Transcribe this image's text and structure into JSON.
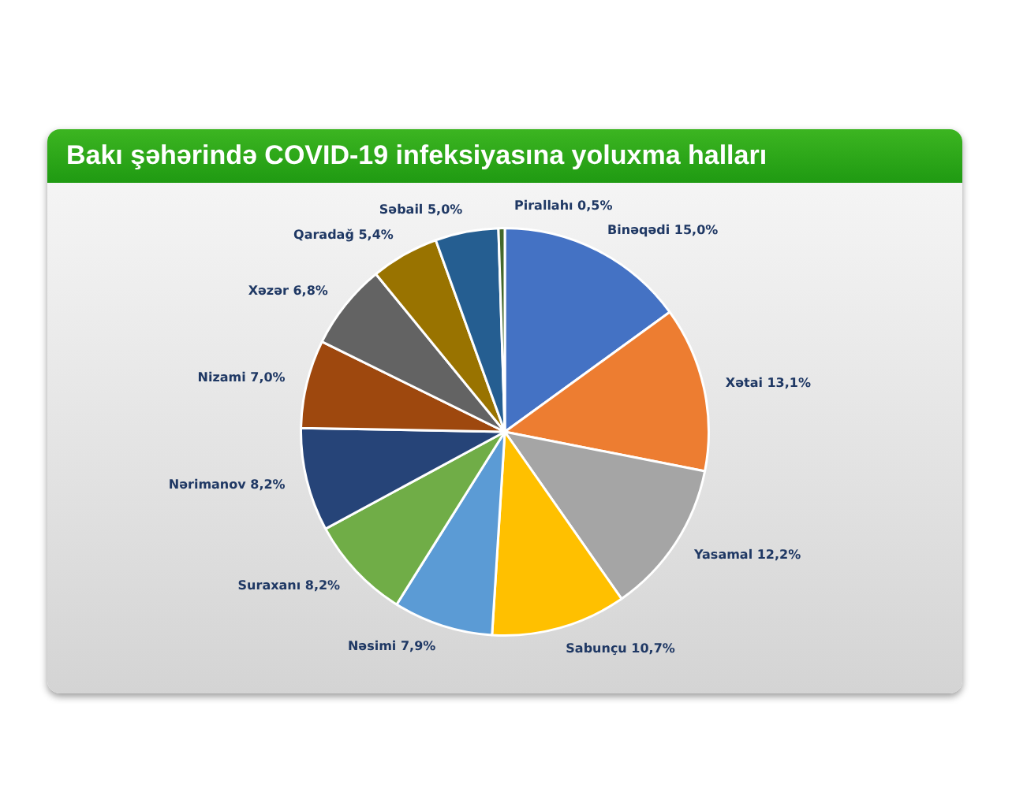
{
  "chart_data": {
    "type": "pie",
    "title": "Bakı şəhərində COVID-19 infeksiyasına yoluxma halları",
    "categories": [
      "Binəqədi",
      "Xətai",
      "Yasamal",
      "Sabunçu",
      "Nəsimi",
      "Suraxanı",
      "Nərimanov",
      "Nizami",
      "Xəzər",
      "Qaradağ",
      "Səbail",
      "Pirallahı"
    ],
    "values": [
      15.0,
      13.1,
      12.2,
      10.7,
      7.9,
      8.2,
      8.2,
      7.0,
      6.8,
      5.4,
      5.0,
      0.5
    ],
    "value_labels": [
      "15,0%",
      "13,1%",
      "12,2%",
      "10,7%",
      "7,9%",
      "8,2%",
      "8,2%",
      "7,0%",
      "6,8%",
      "5,4%",
      "5,0%",
      "0,5%"
    ],
    "colors": [
      "#4472c4",
      "#ed7d31",
      "#a5a5a5",
      "#ffc000",
      "#5b9bd5",
      "#70ad47",
      "#264478",
      "#9e480e",
      "#636363",
      "#997300",
      "#255e91",
      "#43682b"
    ],
    "legend": false
  }
}
